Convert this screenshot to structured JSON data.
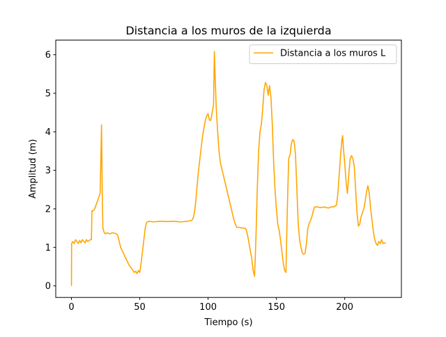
{
  "chart_data": {
    "type": "line",
    "title": "Distancia a los muros de la izquierda",
    "xlabel": "Tiempo (s)",
    "ylabel": "Amplitud (m)",
    "xlim": [
      -11.5,
      241.5
    ],
    "ylim": [
      -0.3,
      6.38
    ],
    "xticks": [
      0,
      50,
      100,
      150,
      200
    ],
    "yticks": [
      0,
      1,
      2,
      3,
      4,
      5,
      6
    ],
    "legend": {
      "position": "top-right"
    },
    "series": [
      {
        "name": "Distancia a los muros L",
        "color": "#ffa500",
        "points": [
          [
            0,
            0.0
          ],
          [
            0.1,
            1.1
          ],
          [
            1,
            1.15
          ],
          [
            2,
            1.1
          ],
          [
            3,
            1.2
          ],
          [
            4,
            1.15
          ],
          [
            5,
            1.1
          ],
          [
            6,
            1.18
          ],
          [
            7,
            1.12
          ],
          [
            8,
            1.2
          ],
          [
            9,
            1.15
          ],
          [
            10,
            1.12
          ],
          [
            11,
            1.2
          ],
          [
            12,
            1.15
          ],
          [
            13,
            1.18
          ],
          [
            14,
            1.2
          ],
          [
            14.6,
            1.2
          ],
          [
            15,
            1.95
          ],
          [
            16,
            1.95
          ],
          [
            17,
            2.0
          ],
          [
            18,
            2.1
          ],
          [
            19,
            2.2
          ],
          [
            20,
            2.3
          ],
          [
            21,
            2.4
          ],
          [
            22,
            4.18
          ],
          [
            22.6,
            2.2
          ],
          [
            23,
            1.5
          ],
          [
            24,
            1.38
          ],
          [
            25,
            1.35
          ],
          [
            26,
            1.38
          ],
          [
            28,
            1.35
          ],
          [
            30,
            1.38
          ],
          [
            32,
            1.36
          ],
          [
            33,
            1.35
          ],
          [
            34,
            1.3
          ],
          [
            35,
            1.15
          ],
          [
            36,
            1.0
          ],
          [
            38,
            0.85
          ],
          [
            40,
            0.7
          ],
          [
            42,
            0.55
          ],
          [
            44,
            0.45
          ],
          [
            45,
            0.4
          ],
          [
            46,
            0.35
          ],
          [
            47,
            0.38
          ],
          [
            48,
            0.32
          ],
          [
            49,
            0.4
          ],
          [
            50,
            0.35
          ],
          [
            51,
            0.6
          ],
          [
            52,
            0.9
          ],
          [
            53,
            1.2
          ],
          [
            54,
            1.5
          ],
          [
            55,
            1.65
          ],
          [
            57,
            1.68
          ],
          [
            60,
            1.66
          ],
          [
            65,
            1.68
          ],
          [
            70,
            1.67
          ],
          [
            75,
            1.68
          ],
          [
            80,
            1.66
          ],
          [
            85,
            1.68
          ],
          [
            88,
            1.7
          ],
          [
            89,
            1.75
          ],
          [
            90,
            1.9
          ],
          [
            91,
            2.2
          ],
          [
            92,
            2.6
          ],
          [
            93,
            3.0
          ],
          [
            94,
            3.3
          ],
          [
            95,
            3.6
          ],
          [
            96,
            3.9
          ],
          [
            97,
            4.1
          ],
          [
            98,
            4.3
          ],
          [
            99,
            4.42
          ],
          [
            100,
            4.47
          ],
          [
            101,
            4.3
          ],
          [
            102,
            4.3
          ],
          [
            103,
            4.5
          ],
          [
            104,
            4.7
          ],
          [
            104.6,
            6.08
          ],
          [
            105,
            5.6
          ],
          [
            106,
            4.6
          ],
          [
            107,
            4.0
          ],
          [
            108,
            3.5
          ],
          [
            109,
            3.2
          ],
          [
            110,
            3.05
          ],
          [
            111,
            2.9
          ],
          [
            112,
            2.75
          ],
          [
            113,
            2.6
          ],
          [
            114,
            2.45
          ],
          [
            115,
            2.3
          ],
          [
            116,
            2.15
          ],
          [
            117,
            2.0
          ],
          [
            118,
            1.85
          ],
          [
            119,
            1.7
          ],
          [
            120,
            1.6
          ],
          [
            121,
            1.52
          ],
          [
            123,
            1.52
          ],
          [
            125,
            1.5
          ],
          [
            127,
            1.5
          ],
          [
            128,
            1.45
          ],
          [
            129,
            1.3
          ],
          [
            130,
            1.1
          ],
          [
            131,
            0.9
          ],
          [
            132,
            0.7
          ],
          [
            133,
            0.4
          ],
          [
            134,
            0.25
          ],
          [
            135,
            1.2
          ],
          [
            136,
            2.5
          ],
          [
            137,
            3.5
          ],
          [
            138,
            4.0
          ],
          [
            139,
            4.2
          ],
          [
            140,
            4.6
          ],
          [
            141,
            5.1
          ],
          [
            142,
            5.28
          ],
          [
            143,
            5.2
          ],
          [
            144,
            4.95
          ],
          [
            145,
            5.2
          ],
          [
            146,
            4.9
          ],
          [
            147,
            4.2
          ],
          [
            148,
            3.2
          ],
          [
            149,
            2.5
          ],
          [
            150,
            2.0
          ],
          [
            151,
            1.6
          ],
          [
            152,
            1.45
          ],
          [
            153,
            1.2
          ],
          [
            154,
            0.9
          ],
          [
            155,
            0.6
          ],
          [
            156,
            0.4
          ],
          [
            157,
            0.35
          ],
          [
            158,
            2.0
          ],
          [
            159,
            3.3
          ],
          [
            160,
            3.4
          ],
          [
            161,
            3.7
          ],
          [
            162,
            3.8
          ],
          [
            163,
            3.75
          ],
          [
            164,
            3.4
          ],
          [
            165,
            2.5
          ],
          [
            166,
            1.6
          ],
          [
            167,
            1.2
          ],
          [
            168,
            1.0
          ],
          [
            169,
            0.85
          ],
          [
            170,
            0.82
          ],
          [
            171,
            0.85
          ],
          [
            172,
            1.1
          ],
          [
            173,
            1.5
          ],
          [
            174,
            1.62
          ],
          [
            175,
            1.7
          ],
          [
            176,
            1.8
          ],
          [
            177,
            1.95
          ],
          [
            178,
            2.05
          ],
          [
            180,
            2.05
          ],
          [
            182,
            2.03
          ],
          [
            185,
            2.05
          ],
          [
            188,
            2.02
          ],
          [
            190,
            2.05
          ],
          [
            192,
            2.05
          ],
          [
            194,
            2.1
          ],
          [
            195,
            2.4
          ],
          [
            196,
            2.9
          ],
          [
            197,
            3.4
          ],
          [
            198,
            3.8
          ],
          [
            198.5,
            3.9
          ],
          [
            199,
            3.6
          ],
          [
            200,
            3.2
          ],
          [
            201,
            2.7
          ],
          [
            202,
            2.4
          ],
          [
            203,
            2.9
          ],
          [
            204,
            3.3
          ],
          [
            205,
            3.38
          ],
          [
            206,
            3.3
          ],
          [
            207,
            3.1
          ],
          [
            208,
            2.5
          ],
          [
            209,
            1.9
          ],
          [
            210,
            1.55
          ],
          [
            211,
            1.6
          ],
          [
            212,
            1.8
          ],
          [
            213,
            1.9
          ],
          [
            214,
            2.0
          ],
          [
            215,
            2.2
          ],
          [
            216,
            2.45
          ],
          [
            217,
            2.6
          ],
          [
            218,
            2.4
          ],
          [
            219,
            2.0
          ],
          [
            220,
            1.7
          ],
          [
            221,
            1.4
          ],
          [
            222,
            1.2
          ],
          [
            223,
            1.1
          ],
          [
            224,
            1.05
          ],
          [
            225,
            1.15
          ],
          [
            226,
            1.1
          ],
          [
            227,
            1.2
          ],
          [
            228,
            1.1
          ],
          [
            229,
            1.12
          ],
          [
            230,
            1.1
          ]
        ]
      }
    ]
  }
}
